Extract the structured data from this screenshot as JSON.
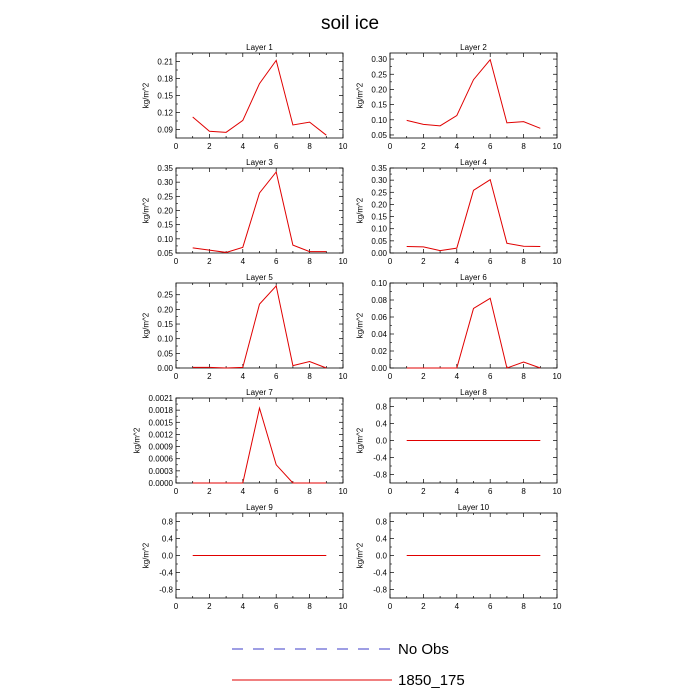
{
  "figure": {
    "title": "soil ice"
  },
  "legend": {
    "items": [
      {
        "label": "No Obs",
        "style": "dashed",
        "color": "#3c3cc8"
      },
      {
        "label": "1850_175",
        "style": "solid",
        "color": "#e00000"
      }
    ]
  },
  "colors": {
    "series": "#e00000",
    "axes": "#000000"
  },
  "chart_data": [
    {
      "type": "line",
      "title": "Layer 1",
      "ylabel": "kg/m^2",
      "xlim": [
        0,
        10
      ],
      "xticks": [
        "0",
        "2",
        "4",
        "6",
        "8",
        "10"
      ],
      "ylim": [
        0.075,
        0.225
      ],
      "yticks": [
        0.09,
        0.12,
        0.15,
        0.18,
        0.21
      ],
      "ytick_labels": [
        "0.09",
        "0.12",
        "0.15",
        "0.18",
        "0.21"
      ],
      "x": [
        1,
        2,
        3,
        4,
        5,
        6,
        7,
        8,
        9
      ],
      "series": [
        {
          "name": "1850_175",
          "values": [
            0.112,
            0.087,
            0.085,
            0.106,
            0.171,
            0.212,
            0.098,
            0.103,
            0.08
          ]
        }
      ]
    },
    {
      "type": "line",
      "title": "Layer 2",
      "ylabel": "kg/m^2",
      "xlim": [
        0,
        10
      ],
      "xticks": [
        "0",
        "2",
        "4",
        "6",
        "8",
        "10"
      ],
      "ylim": [
        0.04,
        0.32
      ],
      "yticks": [
        0.05,
        0.1,
        0.15,
        0.2,
        0.25,
        0.3
      ],
      "ytick_labels": [
        "0.05",
        "0.10",
        "0.15",
        "0.20",
        "0.25",
        "0.30"
      ],
      "x": [
        1,
        2,
        3,
        4,
        5,
        6,
        7,
        8,
        9
      ],
      "series": [
        {
          "name": "1850_175",
          "values": [
            0.098,
            0.085,
            0.08,
            0.114,
            0.232,
            0.298,
            0.09,
            0.094,
            0.072
          ]
        }
      ]
    },
    {
      "type": "line",
      "title": "Layer 3",
      "ylabel": "kg/m^2",
      "xlim": [
        0,
        10
      ],
      "xticks": [
        "0",
        "2",
        "4",
        "6",
        "8",
        "10"
      ],
      "ylim": [
        0.05,
        0.35
      ],
      "yticks": [
        0.05,
        0.1,
        0.15,
        0.2,
        0.25,
        0.3,
        0.35
      ],
      "ytick_labels": [
        "0.05",
        "0.10",
        "0.15",
        "0.20",
        "0.25",
        "0.30",
        "0.35"
      ],
      "x": [
        1,
        2,
        3,
        4,
        5,
        6,
        7,
        8,
        9
      ],
      "series": [
        {
          "name": "1850_175",
          "values": [
            0.068,
            0.06,
            0.052,
            0.07,
            0.262,
            0.336,
            0.078,
            0.055,
            0.055
          ]
        }
      ]
    },
    {
      "type": "line",
      "title": "Layer 4",
      "ylabel": "kg/m^2",
      "xlim": [
        0,
        10
      ],
      "xticks": [
        "0",
        "2",
        "4",
        "6",
        "8",
        "10"
      ],
      "ylim": [
        0.0,
        0.35
      ],
      "yticks": [
        0.0,
        0.05,
        0.1,
        0.15,
        0.2,
        0.25,
        0.3,
        0.35
      ],
      "ytick_labels": [
        "0.00",
        "0.05",
        "0.10",
        "0.15",
        "0.20",
        "0.25",
        "0.30",
        "0.35"
      ],
      "x": [
        1,
        2,
        3,
        4,
        5,
        6,
        7,
        8,
        9
      ],
      "series": [
        {
          "name": "1850_175",
          "values": [
            0.027,
            0.025,
            0.01,
            0.02,
            0.258,
            0.302,
            0.04,
            0.028,
            0.027
          ]
        }
      ]
    },
    {
      "type": "line",
      "title": "Layer 5",
      "ylabel": "kg/m^2",
      "xlim": [
        0,
        10
      ],
      "xticks": [
        "0",
        "2",
        "4",
        "6",
        "8",
        "10"
      ],
      "ylim": [
        0.0,
        0.29
      ],
      "yticks": [
        0.0,
        0.05,
        0.1,
        0.15,
        0.2,
        0.25
      ],
      "ytick_labels": [
        "0.00",
        "0.05",
        "0.10",
        "0.15",
        "0.20",
        "0.25"
      ],
      "x": [
        1,
        2,
        3,
        4,
        5,
        6,
        7,
        8,
        9
      ],
      "series": [
        {
          "name": "1850_175",
          "values": [
            0.002,
            0.002,
            0.0,
            0.002,
            0.218,
            0.28,
            0.008,
            0.022,
            0.0
          ]
        }
      ]
    },
    {
      "type": "line",
      "title": "Layer 6",
      "ylabel": "kg/m^2",
      "xlim": [
        0,
        10
      ],
      "xticks": [
        "0",
        "2",
        "4",
        "6",
        "8",
        "10"
      ],
      "ylim": [
        0.0,
        0.1
      ],
      "yticks": [
        0.0,
        0.02,
        0.04,
        0.06,
        0.08,
        0.1
      ],
      "ytick_labels": [
        "0.00",
        "0.02",
        "0.04",
        "0.06",
        "0.08",
        "0.10"
      ],
      "x": [
        1,
        2,
        3,
        4,
        5,
        6,
        7,
        8,
        9
      ],
      "series": [
        {
          "name": "1850_175",
          "values": [
            0.0,
            0.0,
            0.0,
            0.0,
            0.07,
            0.082,
            0.0,
            0.007,
            0.0
          ]
        }
      ]
    },
    {
      "type": "line",
      "title": "Layer 7",
      "ylabel": "kg/m^2",
      "xlim": [
        0,
        10
      ],
      "xticks": [
        "0",
        "2",
        "4",
        "6",
        "8",
        "10"
      ],
      "ylim": [
        0.0,
        0.0021
      ],
      "yticks": [
        0.0,
        0.0003,
        0.0006,
        0.0009,
        0.0012,
        0.0015,
        0.0018,
        0.0021
      ],
      "ytick_labels": [
        "0.0000",
        "0.0003",
        "0.0006",
        "0.0009",
        "0.0012",
        "0.0015",
        "0.0018",
        "0.0021"
      ],
      "x": [
        1,
        2,
        3,
        4,
        5,
        6,
        7,
        8,
        9
      ],
      "series": [
        {
          "name": "1850_175",
          "values": [
            0.0,
            0.0,
            0.0,
            0.0,
            0.00185,
            0.00045,
            0.0,
            0.0,
            0.0
          ]
        }
      ]
    },
    {
      "type": "line",
      "title": "Layer 8",
      "ylabel": "kg/m^2",
      "xlim": [
        0,
        10
      ],
      "xticks": [
        "0",
        "2",
        "4",
        "6",
        "8",
        "10"
      ],
      "ylim": [
        -1.0,
        1.0
      ],
      "yticks": [
        -0.8,
        -0.4,
        0.0,
        0.4,
        0.8
      ],
      "ytick_labels": [
        "-0.8",
        "-0.4",
        "0.0",
        "0.4",
        "0.8"
      ],
      "x": [
        1,
        2,
        3,
        4,
        5,
        6,
        7,
        8,
        9
      ],
      "series": [
        {
          "name": "1850_175",
          "values": [
            0,
            0,
            0,
            0,
            0,
            0,
            0,
            0,
            0
          ]
        }
      ]
    },
    {
      "type": "line",
      "title": "Layer 9",
      "ylabel": "kg/m^2",
      "xlim": [
        0,
        10
      ],
      "xticks": [
        "0",
        "2",
        "4",
        "6",
        "8",
        "10"
      ],
      "ylim": [
        -1.0,
        1.0
      ],
      "yticks": [
        -0.8,
        -0.4,
        0.0,
        0.4,
        0.8
      ],
      "ytick_labels": [
        "-0.8",
        "-0.4",
        "0.0",
        "0.4",
        "0.8"
      ],
      "x": [
        1,
        2,
        3,
        4,
        5,
        6,
        7,
        8,
        9
      ],
      "series": [
        {
          "name": "1850_175",
          "values": [
            0,
            0,
            0,
            0,
            0,
            0,
            0,
            0,
            0
          ]
        }
      ]
    },
    {
      "type": "line",
      "title": "Layer 10",
      "ylabel": "kg/m^2",
      "xlim": [
        0,
        10
      ],
      "xticks": [
        "0",
        "2",
        "4",
        "6",
        "8",
        "10"
      ],
      "ylim": [
        -1.0,
        1.0
      ],
      "yticks": [
        -0.8,
        -0.4,
        0.0,
        0.4,
        0.8
      ],
      "ytick_labels": [
        "-0.8",
        "-0.4",
        "0.0",
        "0.4",
        "0.8"
      ],
      "x": [
        1,
        2,
        3,
        4,
        5,
        6,
        7,
        8,
        9
      ],
      "series": [
        {
          "name": "1850_175",
          "values": [
            0,
            0,
            0,
            0,
            0,
            0,
            0,
            0,
            0
          ]
        }
      ]
    }
  ]
}
